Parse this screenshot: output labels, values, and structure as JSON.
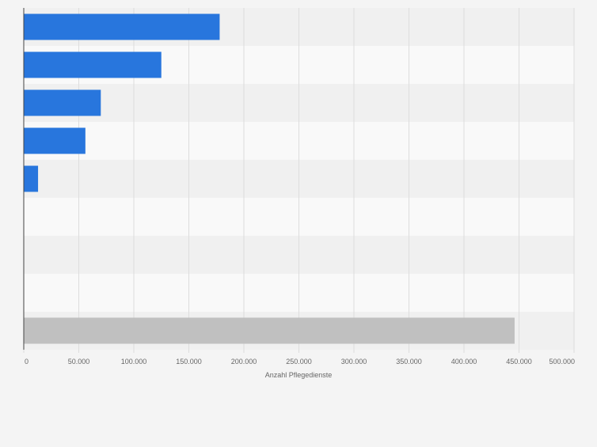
{
  "chart_data": {
    "type": "bar",
    "orientation": "horizontal",
    "title": "",
    "xlabel": "Anzahl Pflegedienste",
    "ylabel": "",
    "xlim": [
      0,
      500000
    ],
    "x_ticks": [
      0,
      50000,
      100000,
      150000,
      200000,
      250000,
      300000,
      350000,
      400000,
      450000,
      500000
    ],
    "x_tick_labels": [
      "0",
      "50.000",
      "100.000",
      "150.000",
      "200.000",
      "250.000",
      "300.000",
      "350.000",
      "400.000",
      "450.000",
      "500.000"
    ],
    "category_labels_visible": false,
    "grid": true,
    "legend": "none",
    "values": [
      178000,
      125000,
      70000,
      56000,
      13000,
      0,
      0,
      0,
      446000
    ],
    "bar_colors": [
      "#2876dd",
      "#2876dd",
      "#2876dd",
      "#2876dd",
      "#2876dd",
      "#2876dd",
      "#2876dd",
      "#2876dd",
      "#c0c0c0"
    ]
  },
  "colors": {
    "background": "#f4f4f4",
    "band_dark": "#f0f0f0",
    "band_light": "#f9f9f9",
    "grid": "#dddddd",
    "axis": "#444444",
    "tick_text": "#666666"
  }
}
